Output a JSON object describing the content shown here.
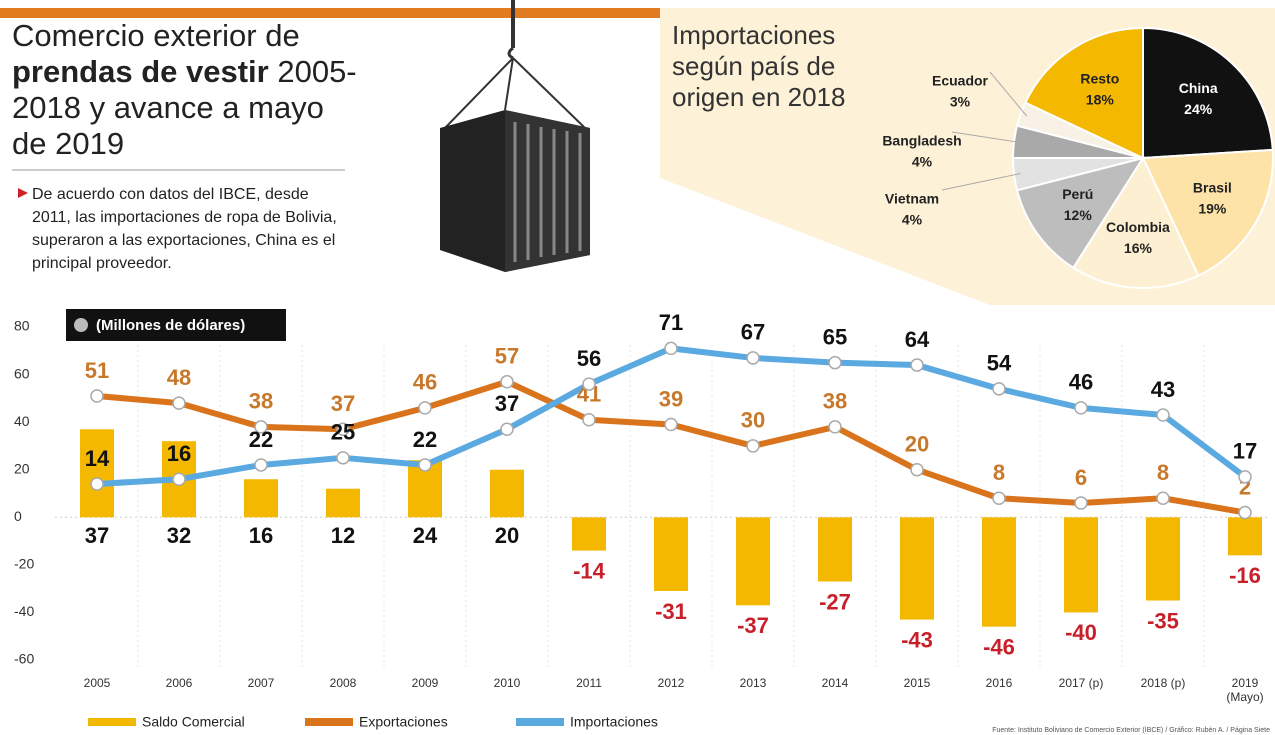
{
  "header": {
    "title_start": "Comercio exterior de",
    "title_bold": "prendas de vestir",
    "title_end": "2005-2018 y avance a mayo de 2019",
    "note": "De acuerdo con datos del IBCE, desde 2011, las importa­ciones de ropa de Bolivia, superaron a las exportaciones, China es el principal proveedor."
  },
  "footer": {
    "source": "Fuente: Instituto Boliviano de Comercio Exterior (IBCE) / Gráfico: Rubén A. / Página Siete"
  },
  "chart_data": [
    {
      "type": "combo",
      "subtitle": "(Millones de dólares)",
      "categories": [
        "2005",
        "2006",
        "2007",
        "2008",
        "2009",
        "2010",
        "2011",
        "2012",
        "2013",
        "2014",
        "2015",
        "2016",
        "2017 (p)",
        "2018 (p)",
        "2019 (Mayo)"
      ],
      "series": [
        {
          "name": "Saldo Comercial",
          "type": "bar",
          "color": "#f5b800",
          "values": [
            37,
            32,
            16,
            12,
            24,
            20,
            -14,
            -31,
            -37,
            -27,
            -43,
            -46,
            -40,
            -35,
            -16
          ]
        },
        {
          "name": "Exportaciones",
          "type": "line",
          "color": "#d9731c",
          "values": [
            51,
            48,
            38,
            37,
            46,
            57,
            41,
            39,
            30,
            38,
            20,
            8,
            6,
            8,
            2
          ]
        },
        {
          "name": "Importaciones",
          "type": "line",
          "color": "#5aa9e0",
          "values": [
            14,
            16,
            22,
            25,
            22,
            37,
            56,
            71,
            67,
            65,
            64,
            54,
            46,
            43,
            17
          ]
        }
      ],
      "ylim": [
        -60,
        80
      ],
      "yticks": [
        -60,
        -40,
        -20,
        0,
        20,
        40,
        60,
        80
      ],
      "grid": false
    },
    {
      "type": "pie",
      "title": "Importaciones según país de origen en 2018",
      "categories": [
        "China",
        "Brasil",
        "Colombia",
        "Perú",
        "Vietnam",
        "Bangladesh",
        "Ecuador",
        "Resto"
      ],
      "values": [
        24,
        19,
        16,
        12,
        4,
        4,
        3,
        18
      ],
      "value_labels": [
        "24%",
        "19%",
        "16%",
        "12%",
        "4%",
        "4%",
        "3%",
        "18%"
      ],
      "colors": [
        "#111111",
        "#fde3a8",
        "#fdefd2",
        "#bdbdbd",
        "#e2e2e2",
        "#a9a9a9",
        "#f7f1e6",
        "#f5b800"
      ]
    }
  ]
}
